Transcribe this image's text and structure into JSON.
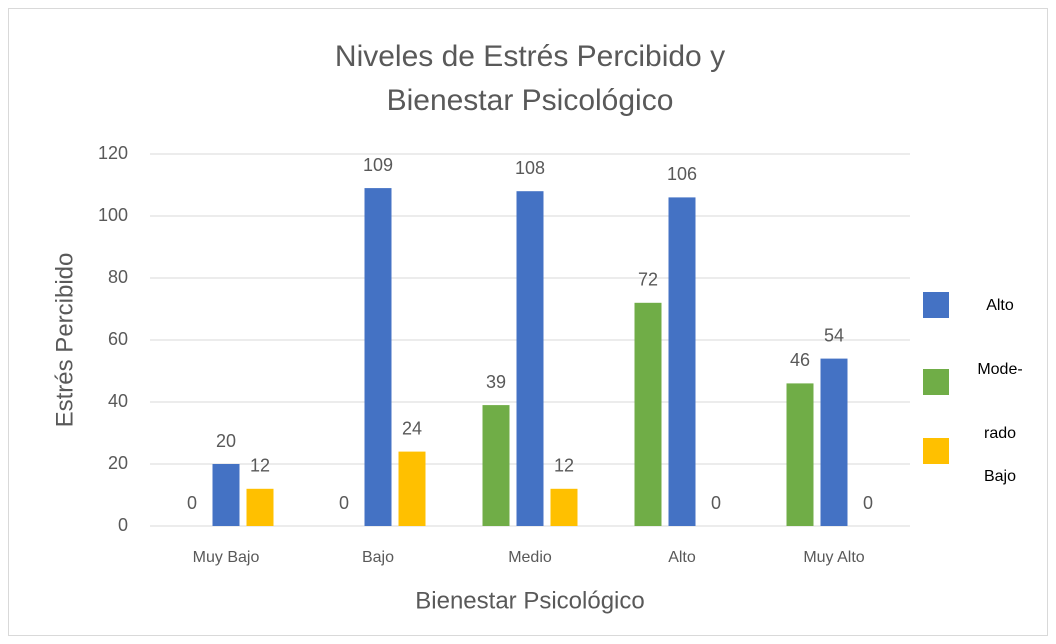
{
  "chart_data": {
    "type": "bar",
    "title": [
      "Niveles de Estrés Percibido y",
      "Bienestar Psicológico"
    ],
    "x_label": "Bienestar Psicológico",
    "y_label": "Estrés Percibido",
    "categories": [
      "Muy Bajo",
      "Bajo",
      "Medio",
      "Alto",
      "Muy Alto"
    ],
    "series": [
      {
        "name": "Alto",
        "color": "#4472c4",
        "values": [
          20,
          109,
          108,
          106,
          54
        ]
      },
      {
        "name": "Mode-rado",
        "color": "#70ad47",
        "values": [
          0,
          0,
          39,
          72,
          46
        ]
      },
      {
        "name": "Bajo",
        "color": "#ffc000",
        "values": [
          12,
          24,
          12,
          0,
          0
        ]
      }
    ],
    "ylim": [
      0,
      120
    ],
    "yticks": [
      0,
      20,
      40,
      60,
      80,
      100,
      120
    ],
    "grid": true,
    "legend": "right"
  }
}
